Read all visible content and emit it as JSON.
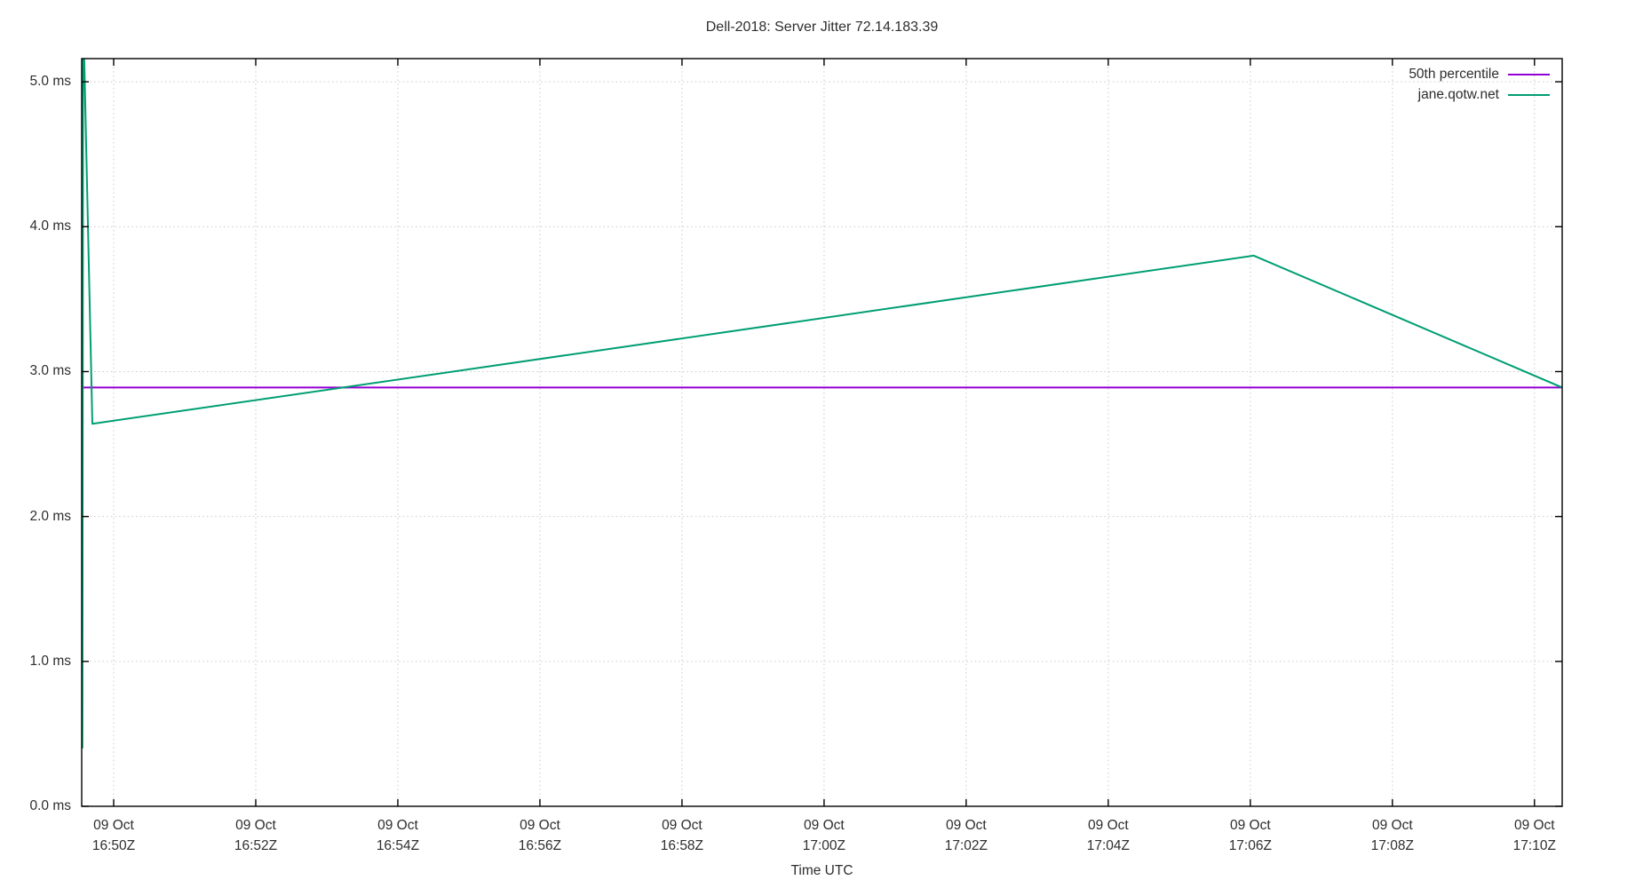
{
  "chart_data": {
    "type": "line",
    "title": "Dell-2018: Server Jitter 72.14.183.39",
    "xlabel": "Time UTC",
    "ylabel": "",
    "grid": true,
    "legend_position": "top-right-inside",
    "background_color": "#ffffff",
    "axis_color": "#000000",
    "grid_color": "#c9c9c9",
    "text_color": "#2e2e2e",
    "x_unit": "minutes after 16:00 UTC on 09 Oct",
    "x_axis": {
      "min": 49.55,
      "max": 70.39,
      "ticks": [
        {
          "t": 50,
          "date": "09 Oct",
          "time": "16:50Z"
        },
        {
          "t": 52,
          "date": "09 Oct",
          "time": "16:52Z"
        },
        {
          "t": 54,
          "date": "09 Oct",
          "time": "16:54Z"
        },
        {
          "t": 56,
          "date": "09 Oct",
          "time": "16:56Z"
        },
        {
          "t": 58,
          "date": "09 Oct",
          "time": "16:58Z"
        },
        {
          "t": 60,
          "date": "09 Oct",
          "time": "17:00Z"
        },
        {
          "t": 62,
          "date": "09 Oct",
          "time": "17:02Z"
        },
        {
          "t": 64,
          "date": "09 Oct",
          "time": "17:04Z"
        },
        {
          "t": 66,
          "date": "09 Oct",
          "time": "17:06Z"
        },
        {
          "t": 68,
          "date": "09 Oct",
          "time": "17:08Z"
        },
        {
          "t": 70,
          "date": "09 Oct",
          "time": "17:10Z"
        }
      ]
    },
    "y_axis": {
      "min": 0,
      "max": 5.16,
      "ticks": [
        {
          "v": 0,
          "label": "0.0 ms"
        },
        {
          "v": 1,
          "label": "1.0 ms"
        },
        {
          "v": 2,
          "label": "2.0 ms"
        },
        {
          "v": 3,
          "label": "3.0 ms"
        },
        {
          "v": 4,
          "label": "4.0 ms"
        },
        {
          "v": 5,
          "label": "5.0 ms"
        }
      ]
    },
    "series": [
      {
        "name": "50th percentile",
        "color": "#9400d3",
        "points": [
          [
            49.55,
            2.89
          ],
          [
            70.39,
            2.89
          ]
        ]
      },
      {
        "name": "jane.qotw.net",
        "color": "#009e73",
        "points": [
          [
            49.56,
            0.4
          ],
          [
            49.57,
            5.5
          ],
          [
            49.7,
            2.64
          ],
          [
            66.05,
            3.8
          ],
          [
            70.39,
            2.89
          ]
        ]
      }
    ]
  }
}
